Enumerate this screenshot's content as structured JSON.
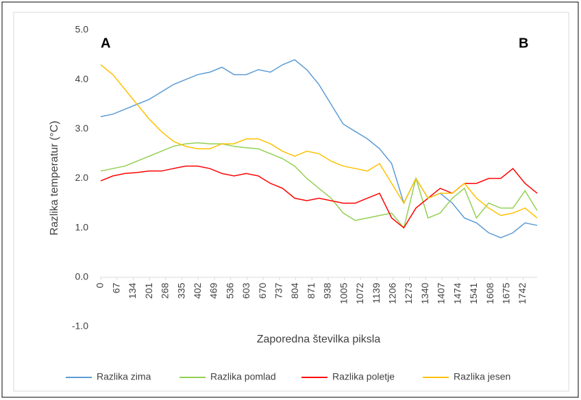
{
  "chart_data": {
    "type": "line",
    "annotations": [
      "A",
      "B"
    ],
    "x_label": "Zaporedna številka piksla",
    "y_label": "Razlika temperatur (°C)",
    "x": [
      0,
      50,
      100,
      150,
      200,
      250,
      300,
      350,
      400,
      450,
      500,
      550,
      600,
      650,
      700,
      750,
      800,
      850,
      900,
      950,
      1000,
      1050,
      1100,
      1150,
      1200,
      1250,
      1300,
      1350,
      1400,
      1450,
      1500,
      1550,
      1600,
      1650,
      1700,
      1750,
      1800
    ],
    "series": [
      {
        "name": "Razlika zima",
        "color": "#5b9bd5",
        "values": [
          3.25,
          3.3,
          3.4,
          3.5,
          3.6,
          3.75,
          3.9,
          4.0,
          4.1,
          4.15,
          4.25,
          4.1,
          4.1,
          4.2,
          4.15,
          4.3,
          4.4,
          4.2,
          3.9,
          3.5,
          3.1,
          2.95,
          2.8,
          2.6,
          2.3,
          1.5,
          2.0,
          1.6,
          1.7,
          1.5,
          1.2,
          1.1,
          0.9,
          0.8,
          0.9,
          1.1,
          1.05
        ]
      },
      {
        "name": "Razlika pomlad",
        "color": "#92d050",
        "values": [
          2.15,
          2.2,
          2.25,
          2.35,
          2.45,
          2.55,
          2.65,
          2.7,
          2.72,
          2.7,
          2.7,
          2.65,
          2.62,
          2.6,
          2.5,
          2.4,
          2.25,
          2.0,
          1.8,
          1.6,
          1.3,
          1.15,
          1.2,
          1.25,
          1.3,
          1.0,
          2.0,
          1.2,
          1.3,
          1.6,
          1.8,
          1.2,
          1.5,
          1.4,
          1.4,
          1.75,
          1.35
        ]
      },
      {
        "name": "Razlika poletje",
        "color": "#ff0000",
        "values": [
          1.95,
          2.05,
          2.1,
          2.12,
          2.15,
          2.15,
          2.2,
          2.25,
          2.25,
          2.2,
          2.1,
          2.05,
          2.1,
          2.05,
          1.9,
          1.8,
          1.6,
          1.55,
          1.6,
          1.55,
          1.5,
          1.5,
          1.6,
          1.7,
          1.2,
          1.0,
          1.4,
          1.6,
          1.8,
          1.7,
          1.9,
          1.9,
          2.0,
          2.0,
          2.2,
          1.9,
          1.7
        ]
      },
      {
        "name": "Razlika jesen",
        "color": "#ffc000",
        "values": [
          4.3,
          4.1,
          3.8,
          3.5,
          3.2,
          2.95,
          2.75,
          2.65,
          2.6,
          2.6,
          2.7,
          2.7,
          2.8,
          2.8,
          2.7,
          2.55,
          2.45,
          2.55,
          2.5,
          2.35,
          2.25,
          2.2,
          2.15,
          2.3,
          1.9,
          1.5,
          2.0,
          1.6,
          1.7,
          1.7,
          1.9,
          1.6,
          1.4,
          1.25,
          1.3,
          1.4,
          1.2
        ]
      }
    ],
    "xlim": [
      0,
      1800
    ],
    "xticks": [
      0,
      67,
      134,
      201,
      268,
      335,
      402,
      469,
      536,
      603,
      670,
      737,
      804,
      871,
      938,
      1005,
      1072,
      1139,
      1206,
      1273,
      1340,
      1407,
      1474,
      1541,
      1608,
      1675,
      1742
    ],
    "ylim": [
      -1,
      5
    ],
    "yticks": [
      {
        "value": -1,
        "label": "-1.0"
      },
      {
        "value": 0,
        "label": "0.0"
      },
      {
        "value": 1,
        "label": "1.0"
      },
      {
        "value": 2,
        "label": "2.0"
      },
      {
        "value": 3,
        "label": "3.0"
      },
      {
        "value": 4,
        "label": "4.0"
      },
      {
        "value": 5,
        "label": "5.0"
      }
    ],
    "legend": "bottom"
  }
}
